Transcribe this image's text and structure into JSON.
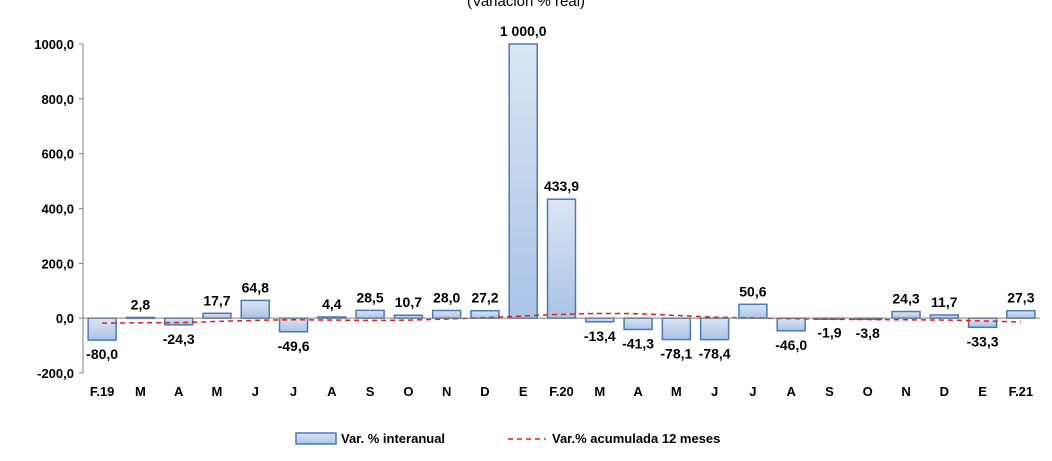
{
  "chart_data": {
    "type": "bar",
    "title": "(Variación % real)",
    "categories": [
      "F.19",
      "M",
      "A",
      "M",
      "J",
      "J",
      "A",
      "S",
      "O",
      "N",
      "D",
      "E",
      "F.20",
      "M",
      "A",
      "M",
      "J",
      "J",
      "A",
      "S",
      "O",
      "N",
      "D",
      "E",
      "F.21"
    ],
    "series": [
      {
        "name": "Var. % interanual",
        "type": "bar",
        "values": [
          -80.0,
          2.8,
          -24.3,
          17.7,
          64.8,
          -49.6,
          4.4,
          28.5,
          10.7,
          28.0,
          27.2,
          1000.0,
          433.9,
          -13.4,
          -41.3,
          -78.1,
          -78.4,
          50.6,
          -46.0,
          -1.9,
          -3.8,
          24.3,
          11.7,
          -33.3,
          27.3
        ],
        "labels": [
          "-80,0",
          "2,8",
          "-24,3",
          "17,7",
          "64,8",
          "-49,6",
          "4,4",
          "28,5",
          "10,7",
          "28,0",
          "27,2",
          "1 000,0",
          "433,9",
          "-13,4",
          "-41,3",
          "-78,1",
          "-78,4",
          "50,6",
          "-46,0",
          "-1,9",
          "-3,8",
          "24,3",
          "11,7",
          "-33,3",
          "27,3"
        ]
      },
      {
        "name": "Var.% acumulada 12 meses",
        "type": "line",
        "values": [
          -18,
          -17,
          -16,
          -12,
          -8,
          -6,
          -7,
          -8,
          -7,
          -3,
          2,
          8,
          14,
          17,
          16,
          10,
          4,
          1,
          -2,
          -4,
          -5,
          -6,
          -7,
          -10,
          -14
        ]
      }
    ],
    "yticks": [
      "1000,0",
      "800,0",
      "600,0",
      "400,0",
      "200,0",
      "0,0",
      "-200,0"
    ],
    "ylim": [
      -200,
      1000
    ],
    "legend_position": "bottom",
    "colors": {
      "bar_fill_top": "#dce6f4",
      "bar_fill_bottom": "#a9c3e6",
      "bar_stroke": "#4a7ab5",
      "line": "#e01e1e"
    }
  }
}
